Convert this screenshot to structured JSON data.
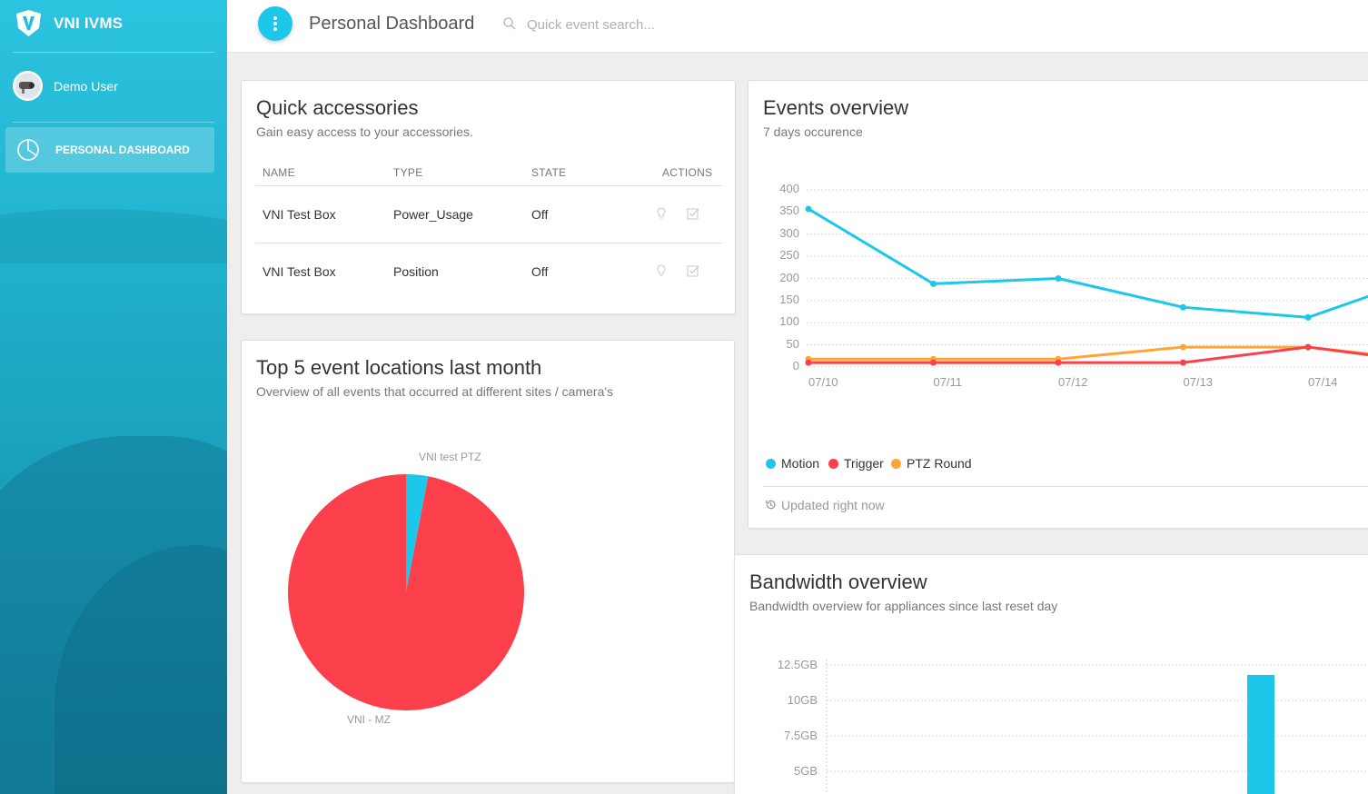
{
  "app": {
    "name": "VNI IVMS"
  },
  "user": {
    "name": "Demo User"
  },
  "sidebar": {
    "items": [
      {
        "label": "PERSONAL DASHBOARD",
        "icon": "pie-chart-icon",
        "active": true
      }
    ]
  },
  "header": {
    "title": "Personal Dashboard",
    "search_placeholder": "Quick event search..."
  },
  "colors": {
    "accent": "#1dc7ea",
    "motion": "#1dc7ea",
    "trigger": "#fb404b",
    "ptz": "#ffa534"
  },
  "quick_accessories": {
    "title": "Quick accessories",
    "subtitle": "Gain easy access to your accessories.",
    "columns": [
      "NAME",
      "TYPE",
      "STATE",
      "ACTIONS"
    ],
    "rows": [
      {
        "name": "VNI Test Box",
        "type": "Power_Usage",
        "state": "Off"
      },
      {
        "name": "VNI Test Box",
        "type": "Position",
        "state": "Off"
      }
    ]
  },
  "top_locations": {
    "title": "Top 5 event locations last month",
    "subtitle": "Overview of all events that occurred at different sites / camera's",
    "chart_data": {
      "type": "pie",
      "slices": [
        {
          "label": "VNI test PTZ",
          "value": 3,
          "color": "#1dc7ea"
        },
        {
          "label": "VNI - MZ",
          "value": 97,
          "color": "#fb404b"
        }
      ]
    }
  },
  "events_overview": {
    "title": "Events overview",
    "subtitle": "7 days occurence",
    "updated": "Updated right now",
    "chart_data": {
      "type": "line",
      "x": [
        "07/10",
        "07/11",
        "07/12",
        "07/13",
        "07/14"
      ],
      "yticks": [
        0,
        50,
        100,
        150,
        200,
        250,
        300,
        350,
        400
      ],
      "ylim": [
        0,
        400
      ],
      "series": [
        {
          "name": "Motion",
          "color": "#1dc7ea",
          "values": [
            357,
            188,
            200,
            135,
            112
          ]
        },
        {
          "name": "Trigger",
          "color": "#fb404b",
          "values": [
            10,
            10,
            10,
            10,
            45
          ]
        },
        {
          "name": "PTZ Round",
          "color": "#ffa534",
          "values": [
            18,
            18,
            18,
            45,
            45
          ]
        }
      ]
    }
  },
  "bandwidth": {
    "title": "Bandwidth overview",
    "subtitle": "Bandwidth overview for appliances since last reset day",
    "chart_data": {
      "type": "bar",
      "yticks": [
        "12.5GB",
        "10GB",
        "7.5GB",
        "5GB"
      ],
      "ytick_values": [
        12.5,
        10,
        7.5,
        5
      ],
      "bars": [
        {
          "value": 11.8,
          "color": "#1dc7ea"
        }
      ]
    }
  }
}
